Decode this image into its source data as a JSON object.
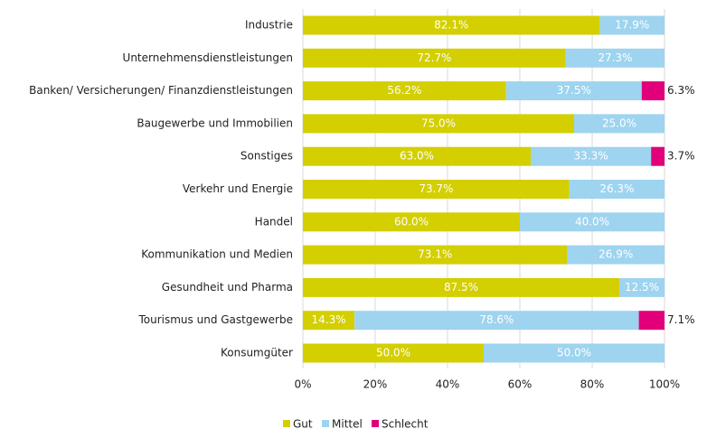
{
  "chart_data": {
    "type": "stacked_bar_horizontal",
    "categories": [
      "Industrie",
      "Unternehmensdienstleistungen",
      "Banken/ Versicherungen/ Finanzdienstleistungen",
      "Baugewerbe und Immobilien",
      "Sonstiges",
      "Verkehr und Energie",
      "Handel",
      "Kommunikation und Medien",
      "Gesundheit und Pharma",
      "Tourismus und Gastgewerbe",
      "Konsumgüter"
    ],
    "series": [
      {
        "name": "Gut",
        "color": "#d3cf00",
        "values": [
          82.1,
          72.7,
          56.2,
          75.0,
          63.0,
          73.7,
          60.0,
          73.1,
          87.5,
          14.3,
          50.0
        ],
        "value_labels": [
          "82.1%",
          "72.7%",
          "56.2%",
          "75.0%",
          "63.0%",
          "73.7%",
          "60.0%",
          "73.1%",
          "87.5%",
          "14.3%",
          "50.0%"
        ]
      },
      {
        "name": "Mittel",
        "color": "#9ed4ef",
        "values": [
          17.9,
          27.3,
          37.5,
          25.0,
          33.3,
          26.3,
          40.0,
          26.9,
          12.5,
          78.6,
          50.0
        ],
        "value_labels": [
          "17.9%",
          "27.3%",
          "37.5%",
          "25.0%",
          "33.3%",
          "26.3%",
          "40.0%",
          "26.9%",
          "12.5%",
          "78.6%",
          "50.0%"
        ]
      },
      {
        "name": "Schlecht",
        "color": "#e2007a",
        "values": [
          null,
          null,
          6.3,
          null,
          3.7,
          null,
          null,
          null,
          null,
          7.1,
          null
        ],
        "value_labels": [
          null,
          null,
          "6.3%",
          null,
          "3.7%",
          null,
          null,
          null,
          null,
          "7.1%",
          null
        ]
      }
    ],
    "xlim": [
      0,
      100
    ],
    "xticks": [
      {
        "value": 0,
        "label": "0%"
      },
      {
        "value": 20,
        "label": "20%"
      },
      {
        "value": 40,
        "label": "40%"
      },
      {
        "value": 60,
        "label": "60%"
      },
      {
        "value": 80,
        "label": "80%"
      },
      {
        "value": 100,
        "label": "100%"
      }
    ],
    "grid": true
  }
}
